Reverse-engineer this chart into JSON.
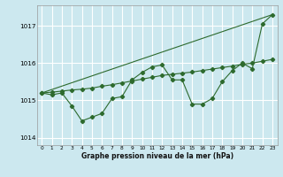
{
  "xlabel": "Graphe pression niveau de la mer (hPa)",
  "background_color": "#cce8ef",
  "grid_color": "#ffffff",
  "line_color": "#2d6a2d",
  "xlim": [
    -0.5,
    23.5
  ],
  "ylim": [
    1013.8,
    1017.55
  ],
  "yticks": [
    1014,
    1015,
    1016,
    1017
  ],
  "xticks": [
    0,
    1,
    2,
    3,
    4,
    5,
    6,
    7,
    8,
    9,
    10,
    11,
    12,
    13,
    14,
    15,
    16,
    17,
    18,
    19,
    20,
    21,
    22,
    23
  ],
  "series1_x": [
    0,
    1,
    2,
    3,
    4,
    5,
    6,
    7,
    8,
    9,
    10,
    11,
    12,
    13,
    14,
    15,
    16,
    17,
    18,
    19,
    20,
    21,
    22,
    23
  ],
  "series1_y": [
    1015.2,
    1015.15,
    1015.2,
    1014.85,
    1014.45,
    1014.55,
    1014.65,
    1015.05,
    1015.1,
    1015.55,
    1015.75,
    1015.9,
    1015.95,
    1015.55,
    1015.55,
    1014.9,
    1014.9,
    1015.05,
    1015.5,
    1015.8,
    1016.0,
    1015.85,
    1017.05,
    1017.3
  ],
  "series2_x": [
    0,
    1,
    2,
    3,
    4,
    5,
    6,
    7,
    8,
    9,
    10,
    11,
    12,
    13,
    14,
    15,
    16,
    17,
    18,
    19,
    20,
    21,
    22,
    23
  ],
  "series2_y": [
    1015.2,
    1015.22,
    1015.25,
    1015.28,
    1015.3,
    1015.33,
    1015.38,
    1015.42,
    1015.47,
    1015.52,
    1015.57,
    1015.62,
    1015.67,
    1015.7,
    1015.73,
    1015.76,
    1015.8,
    1015.84,
    1015.88,
    1015.92,
    1015.97,
    1016.0,
    1016.05,
    1016.1
  ],
  "series3_x": [
    0,
    23
  ],
  "series3_y": [
    1015.2,
    1017.3
  ]
}
